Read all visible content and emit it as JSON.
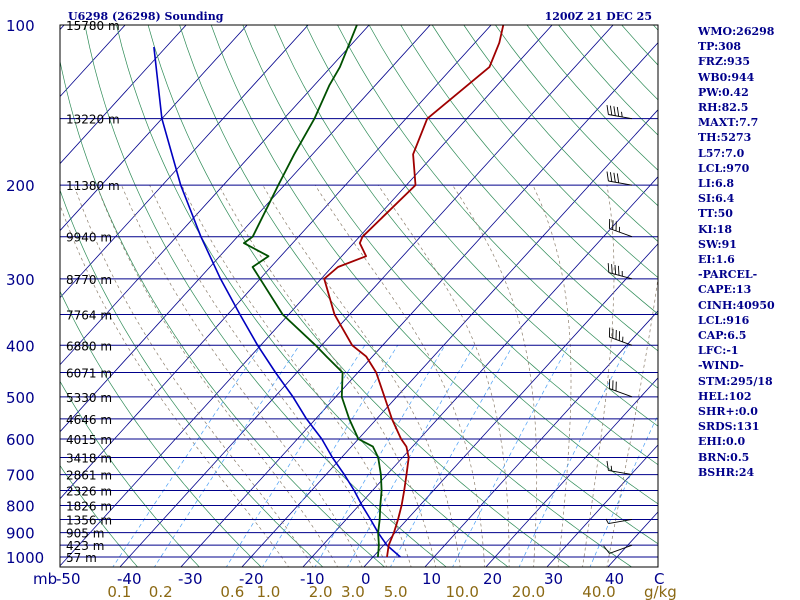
{
  "header": {
    "station": "U6298 (26298) Sounding",
    "datetime": "1200Z 21 DEC 25"
  },
  "indices": [
    "WMO:26298",
    "TP:308",
    "FRZ:935",
    "WB0:944",
    "PW:0.42",
    "RH:82.5",
    "MAXT:7.7",
    "TH:5273",
    "L57:7.0",
    "LCL:970",
    "LI:6.8",
    "SI:6.4",
    "TT:50",
    "KI:18",
    "SW:91",
    "EI:1.6",
    "-PARCEL-",
    "CAPE:13",
    "CINH:40950",
    "LCL:916",
    "CAP:6.5",
    "LFC:-1",
    "-WIND-",
    "STM:295/18",
    "HEL:102",
    "SHR+:0.0",
    "SRDS:131",
    "EHI:0.0",
    "BRN:0.5",
    "BSHR:24"
  ],
  "colors": {
    "isobar": "#00008b",
    "isotherm": "#00008b",
    "dry_adiabat": "#2e8b57",
    "moist_adiabat": "#8b7d6b",
    "mixing_ratio": "#4a9ff5",
    "temperature": "#a00000",
    "dewpoint": "#005000",
    "parcel": "#0000c0",
    "label": "#00008b",
    "mixing_label": "#8b6914"
  },
  "chart_data": {
    "type": "skew-t",
    "title": "U6298 (26298) Sounding",
    "valid_time": "1200Z 21 DEC 25",
    "pressure_ticks_hpa": [
      100,
      200,
      300,
      400,
      500,
      600,
      700,
      800,
      900,
      1000
    ],
    "pressure_tick_labels": [
      "100",
      "200",
      "300",
      "400",
      "500",
      "600",
      "700",
      "800",
      "900",
      "1000"
    ],
    "x_axis_label": "mb",
    "temperature_ticks_c": [
      -50,
      -40,
      -30,
      -20,
      -10,
      0,
      10,
      20,
      30,
      40
    ],
    "temperature_tick_labels": [
      "-50",
      "-40",
      "-30",
      "-20",
      "-10",
      "0",
      "10",
      "20",
      "30",
      "40"
    ],
    "temperature_unit": "C",
    "mixing_ratio_labels": [
      "0.1",
      "0.2",
      "0.6",
      "1.0",
      "2.0",
      "3.0",
      "5.0",
      "10.0",
      "20.0",
      "40.0"
    ],
    "mixing_ratio_unit": "g/kg",
    "height_levels": [
      {
        "p": 100,
        "label": "15780 m"
      },
      {
        "p": 150,
        "label": "13220 m"
      },
      {
        "p": 200,
        "label": "11380 m"
      },
      {
        "p": 250,
        "label": "9940 m"
      },
      {
        "p": 300,
        "label": "8770 m"
      },
      {
        "p": 350,
        "label": "7764 m"
      },
      {
        "p": 400,
        "label": "6880 m"
      },
      {
        "p": 450,
        "label": "6071 m"
      },
      {
        "p": 500,
        "label": "5330 m"
      },
      {
        "p": 550,
        "label": "4646 m"
      },
      {
        "p": 600,
        "label": "4015 m"
      },
      {
        "p": 650,
        "label": "3418 m"
      },
      {
        "p": 700,
        "label": "2861 m"
      },
      {
        "p": 750,
        "label": "2326 m"
      },
      {
        "p": 800,
        "label": "1826 m"
      },
      {
        "p": 850,
        "label": "1356 m"
      },
      {
        "p": 900,
        "label": "905 m"
      },
      {
        "p": 950,
        "label": "423 m"
      },
      {
        "p": 1000,
        "label": "57 m"
      }
    ],
    "temperature_profile": [
      {
        "p": 1000,
        "t": 2.3
      },
      {
        "p": 950,
        "t": 0.8
      },
      {
        "p": 900,
        "t": -0.2
      },
      {
        "p": 850,
        "t": -1.5
      },
      {
        "p": 800,
        "t": -3.0
      },
      {
        "p": 750,
        "t": -4.8
      },
      {
        "p": 700,
        "t": -6.8
      },
      {
        "p": 650,
        "t": -9.0
      },
      {
        "p": 620,
        "t": -11.0
      },
      {
        "p": 600,
        "t": -13.0
      },
      {
        "p": 550,
        "t": -17.5
      },
      {
        "p": 500,
        "t": -22.0
      },
      {
        "p": 450,
        "t": -27.0
      },
      {
        "p": 420,
        "t": -31.0
      },
      {
        "p": 400,
        "t": -35.0
      },
      {
        "p": 350,
        "t": -42.5
      },
      {
        "p": 300,
        "t": -49.5
      },
      {
        "p": 285,
        "t": -49.0
      },
      {
        "p": 272,
        "t": -46.0
      },
      {
        "p": 257,
        "t": -49.0
      },
      {
        "p": 250,
        "t": -49.5
      },
      {
        "p": 200,
        "t": -48.5
      },
      {
        "p": 175,
        "t": -53.5
      },
      {
        "p": 150,
        "t": -56.5
      },
      {
        "p": 120,
        "t": -54.0
      },
      {
        "p": 108,
        "t": -56.0
      },
      {
        "p": 100,
        "t": -58.0
      }
    ],
    "dewpoint_profile": [
      {
        "p": 1000,
        "t": 0.8
      },
      {
        "p": 950,
        "t": -0.8
      },
      {
        "p": 900,
        "t": -2.8
      },
      {
        "p": 850,
        "t": -4.5
      },
      {
        "p": 800,
        "t": -6.5
      },
      {
        "p": 750,
        "t": -8.5
      },
      {
        "p": 700,
        "t": -11.0
      },
      {
        "p": 650,
        "t": -14.0
      },
      {
        "p": 620,
        "t": -16.5
      },
      {
        "p": 600,
        "t": -20.0
      },
      {
        "p": 550,
        "t": -24.5
      },
      {
        "p": 500,
        "t": -29.0
      },
      {
        "p": 450,
        "t": -32.5
      },
      {
        "p": 420,
        "t": -37.5
      },
      {
        "p": 400,
        "t": -41.0
      },
      {
        "p": 350,
        "t": -51.0
      },
      {
        "p": 300,
        "t": -60.0
      },
      {
        "p": 285,
        "t": -63.0
      },
      {
        "p": 272,
        "t": -62.0
      },
      {
        "p": 257,
        "t": -68.0
      },
      {
        "p": 250,
        "t": -67.5
      },
      {
        "p": 200,
        "t": -71.0
      },
      {
        "p": 175,
        "t": -73.0
      },
      {
        "p": 150,
        "t": -75.0
      },
      {
        "p": 130,
        "t": -77.5
      },
      {
        "p": 120,
        "t": -78.5
      },
      {
        "p": 100,
        "t": -82.0
      }
    ],
    "parcel_profile": [
      {
        "p": 1000,
        "t": 4.5
      },
      {
        "p": 950,
        "t": 0.5
      },
      {
        "p": 900,
        "t": -2.8
      },
      {
        "p": 850,
        "t": -6.0
      },
      {
        "p": 800,
        "t": -9.5
      },
      {
        "p": 750,
        "t": -13.0
      },
      {
        "p": 700,
        "t": -17.0
      },
      {
        "p": 650,
        "t": -21.5
      },
      {
        "p": 600,
        "t": -26.0
      },
      {
        "p": 550,
        "t": -31.5
      },
      {
        "p": 500,
        "t": -37.0
      },
      {
        "p": 450,
        "t": -43.5
      },
      {
        "p": 400,
        "t": -50.5
      },
      {
        "p": 350,
        "t": -58.0
      },
      {
        "p": 300,
        "t": -66.5
      },
      {
        "p": 250,
        "t": -76.0
      },
      {
        "p": 200,
        "t": -87.0
      },
      {
        "p": 150,
        "t": -100.0
      },
      {
        "p": 110,
        "t": -112.0
      }
    ],
    "wind_barbs": [
      {
        "p": 950,
        "dir": 250,
        "spd": 10
      },
      {
        "p": 850,
        "dir": 260,
        "spd": 5
      },
      {
        "p": 700,
        "dir": 280,
        "spd": 15
      },
      {
        "p": 500,
        "dir": 290,
        "spd": 30
      },
      {
        "p": 400,
        "dir": 290,
        "spd": 45
      },
      {
        "p": 300,
        "dir": 285,
        "spd": 45
      },
      {
        "p": 250,
        "dir": 290,
        "spd": 35
      },
      {
        "p": 200,
        "dir": 280,
        "spd": 40
      },
      {
        "p": 150,
        "dir": 280,
        "spd": 45
      }
    ]
  }
}
